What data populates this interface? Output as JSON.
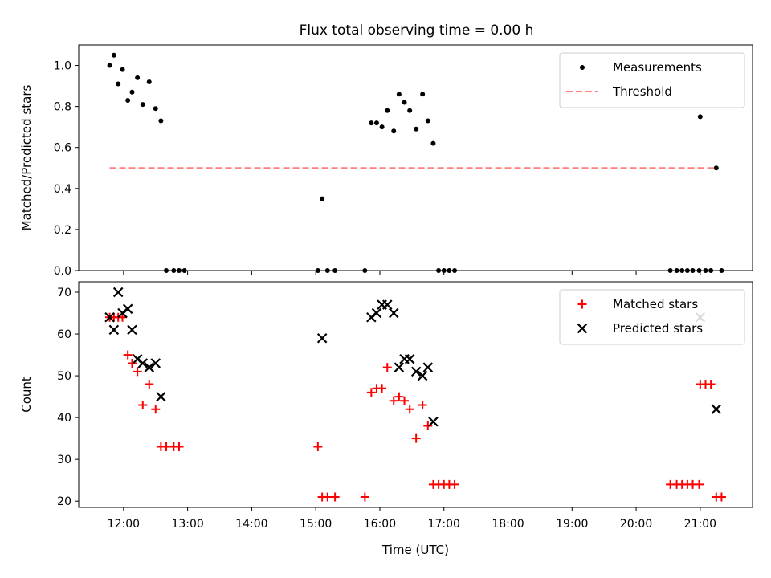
{
  "title": "Flux total observing time = 0.00 h",
  "chart_data": [
    {
      "type": "scatter",
      "panel": "top",
      "ylabel": "Matched/Predicted stars",
      "xlabel": "",
      "ylim": [
        0,
        1.1
      ],
      "yticks": [
        0.0,
        0.2,
        0.4,
        0.6,
        0.8,
        1.0
      ],
      "ytick_labels": [
        "0.0",
        "0.2",
        "0.4",
        "0.6",
        "0.8",
        "1.0"
      ],
      "legend": {
        "position": "top-right",
        "entries": [
          "Measurements",
          "Threshold"
        ]
      },
      "series": [
        {
          "name": "Measurements",
          "color": "#000000",
          "marker": "dot",
          "x": [
            "11:47",
            "11:51",
            "11:55",
            "11:59",
            "12:04",
            "12:08",
            "12:13",
            "12:18",
            "12:24",
            "12:30",
            "12:35",
            "12:40",
            "12:47",
            "12:52",
            "12:57",
            "15:02",
            "15:06",
            "15:11",
            "15:18",
            "15:46",
            "15:52",
            "15:57",
            "16:02",
            "16:07",
            "16:13",
            "16:18",
            "16:23",
            "16:28",
            "16:34",
            "16:40",
            "16:45",
            "16:50",
            "16:55",
            "17:00",
            "17:05",
            "17:10",
            "20:32",
            "20:38",
            "20:43",
            "20:48",
            "20:53",
            "20:59",
            "21:00",
            "21:05",
            "21:10",
            "21:15",
            "21:20"
          ],
          "y": [
            1.0,
            1.05,
            0.91,
            0.98,
            0.83,
            0.87,
            0.94,
            0.81,
            0.92,
            0.79,
            0.73,
            0.0,
            0.0,
            0.0,
            0.0,
            0.0,
            0.35,
            0.0,
            0.0,
            0.0,
            0.72,
            0.72,
            0.7,
            0.78,
            0.68,
            0.86,
            0.82,
            0.78,
            0.69,
            0.86,
            0.73,
            0.62,
            0.0,
            0.0,
            0.0,
            0.0,
            0.0,
            0.0,
            0.0,
            0.0,
            0.0,
            0.0,
            0.75,
            0.0,
            0.0,
            0.5,
            0.0
          ]
        },
        {
          "name": "Threshold",
          "color": "#ff7f7f",
          "style": "dashed",
          "x": [
            "11:47",
            "21:15"
          ],
          "y": [
            0.5,
            0.5
          ]
        }
      ]
    },
    {
      "type": "scatter",
      "panel": "bottom",
      "ylabel": "Count",
      "xlabel": "Time (UTC)",
      "ylim": [
        18.5,
        72.5
      ],
      "yticks": [
        20,
        30,
        40,
        50,
        60,
        70
      ],
      "ytick_labels": [
        "20",
        "30",
        "40",
        "50",
        "60",
        "70"
      ],
      "xticks": [
        "12:00",
        "13:00",
        "14:00",
        "15:00",
        "16:00",
        "17:00",
        "18:00",
        "19:00",
        "20:00",
        "21:00"
      ],
      "xlim": [
        "11:18",
        "21:49"
      ],
      "legend": {
        "position": "top-right",
        "entries": [
          "Matched stars",
          "Predicted stars"
        ]
      },
      "series": [
        {
          "name": "Matched stars",
          "color": "#ff0000",
          "marker": "plus",
          "x": [
            "11:47",
            "11:51",
            "11:55",
            "11:59",
            "12:04",
            "12:08",
            "12:13",
            "12:18",
            "12:24",
            "12:30",
            "12:35",
            "12:40",
            "12:47",
            "12:52",
            "15:02",
            "15:06",
            "15:11",
            "15:18",
            "15:46",
            "15:52",
            "15:57",
            "16:02",
            "16:07",
            "16:13",
            "16:18",
            "16:23",
            "16:28",
            "16:34",
            "16:40",
            "16:45",
            "16:50",
            "16:55",
            "17:00",
            "17:05",
            "17:10",
            "20:32",
            "20:38",
            "20:43",
            "20:48",
            "20:53",
            "20:59",
            "21:00",
            "21:05",
            "21:10",
            "21:15",
            "21:20"
          ],
          "y": [
            64,
            64,
            64,
            64,
            55,
            53,
            51,
            43,
            48,
            42,
            33,
            33,
            33,
            33,
            33,
            21,
            21,
            21,
            21,
            46,
            47,
            47,
            52,
            44,
            45,
            44,
            42,
            35,
            43,
            38,
            24,
            24,
            24,
            24,
            24,
            24,
            24,
            24,
            24,
            24,
            24,
            48,
            48,
            48,
            21,
            21
          ]
        },
        {
          "name": "Predicted stars",
          "color": "#000000",
          "marker": "x",
          "x": [
            "11:47",
            "11:51",
            "11:55",
            "11:59",
            "12:04",
            "12:08",
            "12:13",
            "12:18",
            "12:24",
            "12:30",
            "12:35",
            "15:06",
            "15:52",
            "15:57",
            "16:02",
            "16:07",
            "16:13",
            "16:18",
            "16:23",
            "16:28",
            "16:34",
            "16:40",
            "16:45",
            "16:50",
            "21:00",
            "21:15"
          ],
          "y": [
            64,
            61,
            70,
            65,
            66,
            61,
            54,
            53,
            52,
            53,
            45,
            59,
            64,
            65,
            67,
            67,
            65,
            52,
            54,
            54,
            51,
            50,
            52,
            39,
            64,
            42
          ]
        }
      ]
    }
  ]
}
